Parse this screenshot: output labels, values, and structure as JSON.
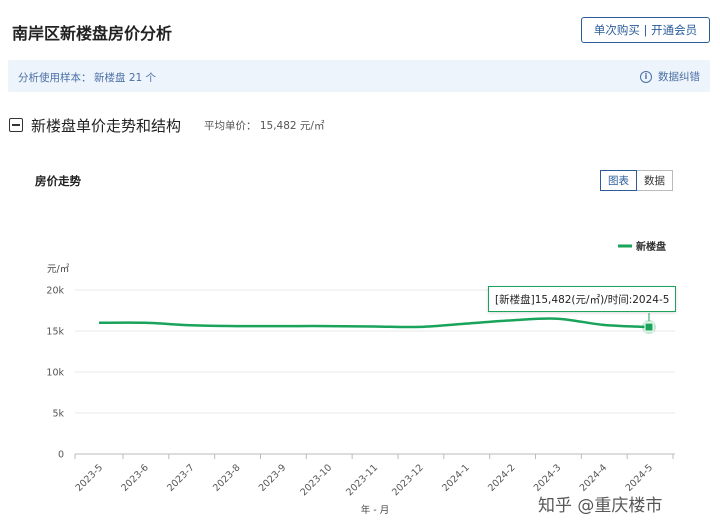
{
  "header": {
    "title": "南岸区新楼盘房价分析",
    "vip_button": "单次购买 | 开通会员"
  },
  "info_bar": {
    "sample_label": "分析使用样本：",
    "sample_value": "新楼盘 21 个",
    "correction_link": "数据纠错"
  },
  "section": {
    "title": "新楼盘单价走势和结构",
    "avg_price": "平均单价： 15,482 元/㎡"
  },
  "chart_card": {
    "title": "房价走势",
    "toggle_chart": "图表",
    "toggle_data": "数据"
  },
  "tooltip": "[新楼盘]15,482(元/㎡)/时间:2024-5",
  "watermark": "知乎 @重庆楼市",
  "colors": {
    "series": "#1aa35a",
    "accent": "#2b5c9a"
  },
  "chart_data": {
    "type": "line",
    "x": [
      "2023-5",
      "2023-6",
      "2023-7",
      "2023-8",
      "2023-9",
      "2023-10",
      "2023-11",
      "2023-12",
      "2024-1",
      "2024-2",
      "2024-3",
      "2024-4",
      "2024-5"
    ],
    "series": [
      {
        "name": "新楼盘",
        "values": [
          16000,
          16000,
          15700,
          15600,
          15600,
          15600,
          15550,
          15500,
          15900,
          16300,
          16500,
          15750,
          15482
        ]
      }
    ],
    "xlabel": "年 - 月",
    "ylabel": "元/㎡",
    "yticks": [
      "0",
      "5k",
      "10k",
      "15k",
      "20k"
    ],
    "ylim": [
      0,
      20000
    ],
    "legend": "top-right",
    "grid": true
  }
}
